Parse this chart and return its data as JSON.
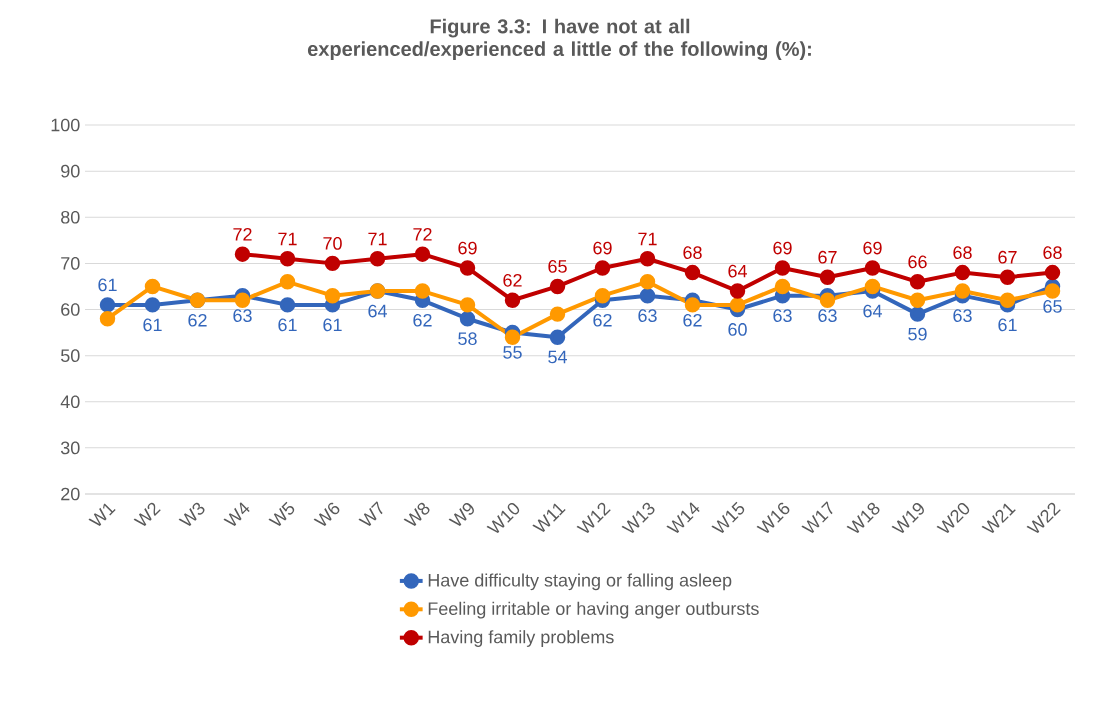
{
  "chart_data": {
    "type": "line",
    "title": "Figure 3.3: I have not at all experienced/experienced a little of the following (%):",
    "categories": [
      "W1",
      "W2",
      "W3",
      "W4",
      "W5",
      "W6",
      "W7",
      "W8",
      "W9",
      "W10",
      "W11",
      "W12",
      "W13",
      "W14",
      "W15",
      "W16",
      "W17",
      "W18",
      "W19",
      "W20",
      "W21",
      "W22"
    ],
    "series": [
      {
        "name": "Have difficulty staying or falling asleep",
        "color": "#3366bb",
        "values": [
          61,
          61,
          62,
          63,
          61,
          61,
          64,
          62,
          58,
          55,
          54,
          62,
          63,
          62,
          60,
          63,
          63,
          64,
          59,
          63,
          61,
          65
        ],
        "value_labels": [
          "61",
          "61",
          "62",
          "63",
          "61",
          "61",
          "64",
          "62",
          "58",
          "55",
          "54",
          "62",
          "63",
          "62",
          "60",
          "63",
          "63",
          "64",
          "59",
          "63",
          "61",
          "65"
        ]
      },
      {
        "name": "Feeling irritable or having anger outbursts",
        "color": "#ff9900",
        "values": [
          58,
          65,
          62,
          62,
          66,
          63,
          64,
          64,
          61,
          54,
          59,
          63,
          66,
          61,
          61,
          65,
          62,
          65,
          62,
          64,
          62,
          64
        ]
      },
      {
        "name": "Having family problems",
        "color": "#c00000",
        "values": [
          null,
          null,
          null,
          72,
          71,
          70,
          71,
          72,
          69,
          62,
          65,
          69,
          71,
          68,
          64,
          69,
          67,
          69,
          66,
          68,
          67,
          68
        ],
        "value_labels": [
          null,
          null,
          null,
          "72",
          "71",
          "70",
          "71",
          "72",
          "69",
          "62",
          "65",
          "69",
          "71",
          "68",
          "64",
          "69",
          "67",
          "69",
          "66",
          "68",
          "67",
          "68"
        ]
      }
    ],
    "ylim": [
      20,
      100
    ],
    "yticks": [
      20,
      30,
      40,
      50,
      60,
      70,
      80,
      90,
      100
    ],
    "grid": "y",
    "legend": "bottom",
    "marker": "circle",
    "line_style": "solid"
  }
}
